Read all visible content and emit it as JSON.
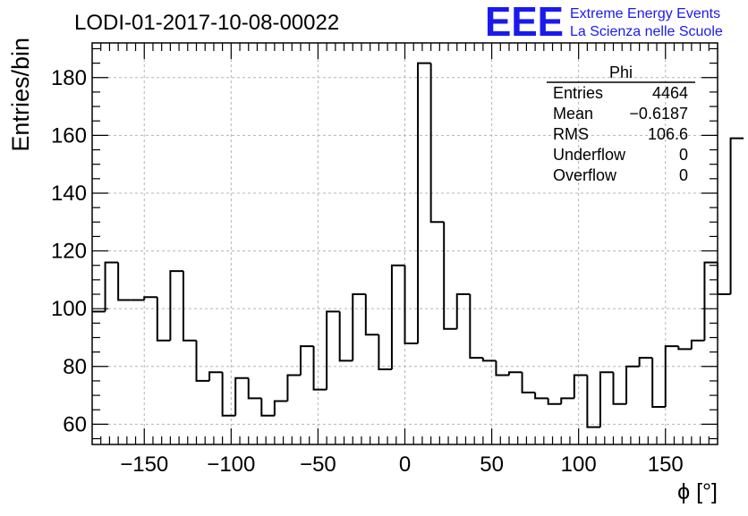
{
  "header": {
    "title": "LODI-01-2017-10-08-00022",
    "logo_text": "EEE",
    "logo_line1": "Extreme Energy Events",
    "logo_line2": "La Scienza nelle Scuole"
  },
  "colors": {
    "logo": "#1a1aee",
    "line": "#000000",
    "grid": "#b4b4b4"
  },
  "stats_box": {
    "name": "Phi",
    "rows": [
      {
        "label": "Entries",
        "value": "4464"
      },
      {
        "label": "Mean",
        "value": "−0.6187"
      },
      {
        "label": "RMS",
        "value": "106.6"
      },
      {
        "label": "Underflow",
        "value": "0"
      },
      {
        "label": "Overflow",
        "value": "0"
      }
    ]
  },
  "chart_data": {
    "type": "bar",
    "xlabel": "ϕ [°]",
    "ylabel": "Entries/bin",
    "xlim": [
      -180,
      180
    ],
    "ylim": [
      53,
      192
    ],
    "bin_width": 7.5,
    "bin_edges_start": -180,
    "values": [
      99,
      116,
      103,
      103,
      104,
      89,
      113,
      89,
      75,
      78,
      63,
      76,
      69,
      63,
      68,
      77,
      87,
      72,
      99,
      82,
      105,
      91,
      79,
      115,
      88,
      185,
      130,
      93,
      105,
      83,
      82,
      77,
      78,
      71,
      69,
      67,
      69,
      77,
      59,
      78,
      67,
      80,
      83,
      66,
      87,
      86,
      89,
      116,
      105,
      159
    ],
    "xticks": [
      -150,
      -100,
      -50,
      0,
      50,
      100,
      150
    ],
    "xtick_labels": [
      "−150",
      "−100",
      "−50",
      "0",
      "50",
      "100",
      "150"
    ],
    "yticks": [
      60,
      80,
      100,
      120,
      140,
      160,
      180
    ],
    "ytick_labels": [
      "60",
      "80",
      "100",
      "120",
      "140",
      "160",
      "180"
    ],
    "grid": true
  }
}
